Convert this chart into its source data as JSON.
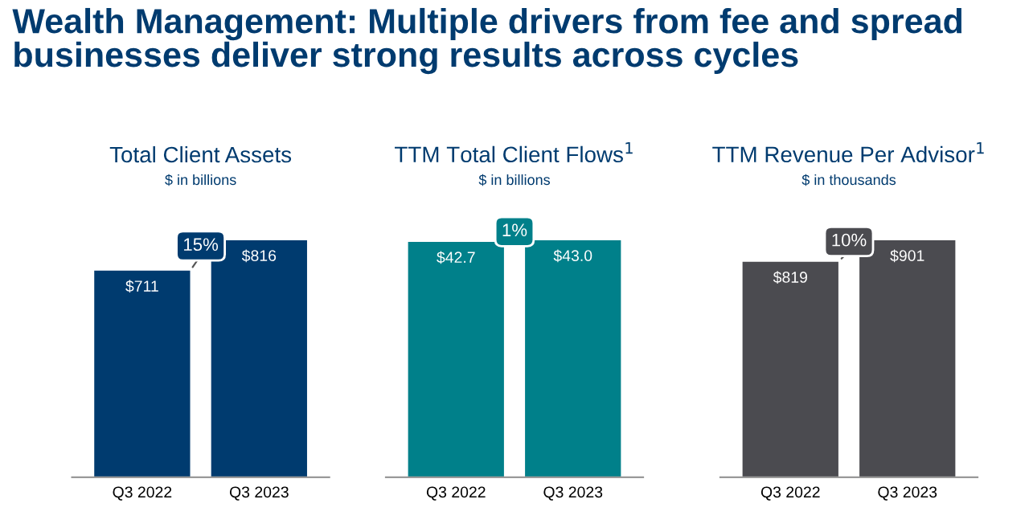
{
  "chart_data": [
    {
      "type": "other",
      "title": "Wealth Management: Multiple drivers from fee and spread businesses deliver strong results across cycles"
    },
    {
      "type": "bar",
      "title": "Total Client Assets",
      "subtitle": "$ in billions",
      "categories": [
        "Q3 2022",
        "Q3 2023"
      ],
      "values": [
        711,
        816
      ],
      "color": "#003b6f",
      "value_labels": [
        "$711",
        "$816"
      ],
      "annotations": [
        "15%"
      ]
    },
    {
      "type": "bar",
      "title": "TTM Total Client Flows$^{1}$",
      "subtitle": "$ in billions",
      "categories": [
        "Q3 2022",
        "Q3 2023"
      ],
      "values": [
        42.7,
        43.0
      ],
      "color": "#00808a",
      "value_labels": [
        "$42.7",
        "$43.0"
      ],
      "annotations": [
        "1%"
      ]
    },
    {
      "type": "bar",
      "title": "TTM Revenue Per Advisor$^{1}$",
      "subtitle": "$ in thousands",
      "categories": [
        "Q3 2022",
        "Q3 2023"
      ],
      "values": [
        819,
        901
      ],
      "color": "#4b4b50",
      "value_labels": [
        "$819",
        "$901"
      ],
      "annotations": [
        "10%"
      ]
    }
  ]
}
